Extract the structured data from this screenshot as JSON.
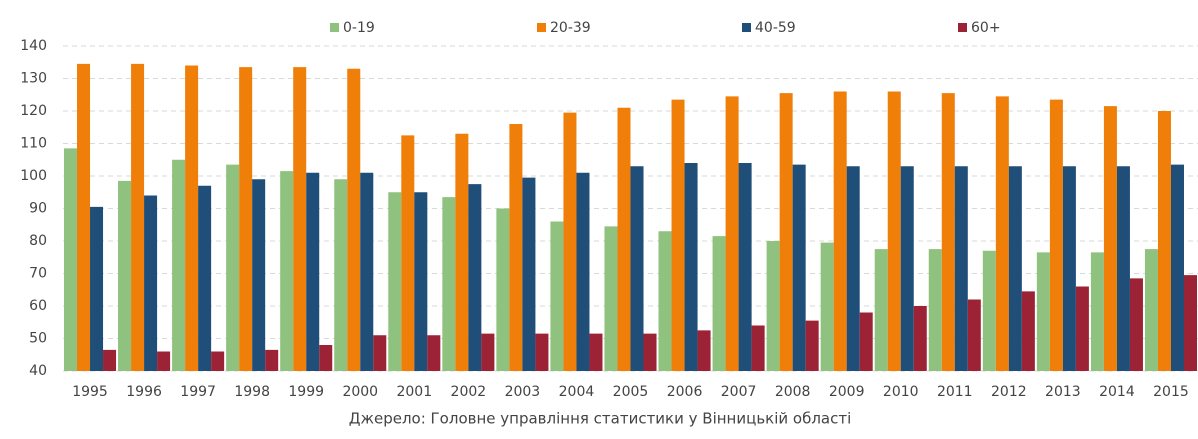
{
  "chart_data": {
    "type": "bar",
    "categories": [
      "1995",
      "1996",
      "1997",
      "1998",
      "1999",
      "2000",
      "2001",
      "2002",
      "2003",
      "2004",
      "2005",
      "2006",
      "2007",
      "2008",
      "2009",
      "2010",
      "2011",
      "2012",
      "2013",
      "2014",
      "2015"
    ],
    "series": [
      {
        "name": "0-19",
        "color": "#8fc17f",
        "values": [
          108.5,
          98.5,
          105,
          103.5,
          101.5,
          99,
          95,
          93.5,
          90,
          86,
          84.5,
          83,
          81.5,
          80,
          79.5,
          77.5,
          77.5,
          77,
          76.5,
          76.5,
          77.5
        ]
      },
      {
        "name": "20-39",
        "color": "#f07f09",
        "values": [
          134.5,
          134.5,
          134,
          133.5,
          133.5,
          133,
          112.5,
          113,
          116,
          119.5,
          121,
          123.5,
          124.5,
          125.5,
          126,
          126,
          125.5,
          124.5,
          123.5,
          121.5,
          120
        ]
      },
      {
        "name": "40-59",
        "color": "#1f4e79",
        "values": [
          90.5,
          94,
          97,
          99,
          101,
          101,
          95,
          97.5,
          99.5,
          101,
          103,
          104,
          104,
          103.5,
          103,
          103,
          103,
          103,
          103,
          103,
          103.5
        ]
      },
      {
        "name": "60+",
        "color": "#9b2335",
        "values": [
          46.5,
          46,
          46,
          46.5,
          48,
          51,
          51,
          51.5,
          51.5,
          51.5,
          51.5,
          52.5,
          54,
          55.5,
          58,
          60,
          62,
          64.5,
          66,
          68.5,
          69.5
        ]
      }
    ],
    "ylim": [
      40,
      140
    ],
    "yticks": [
      40,
      50,
      60,
      70,
      80,
      90,
      100,
      110,
      120,
      130,
      140
    ],
    "grid": true,
    "source": "Джерело:  Головне управління статистики у Вінницькій області"
  }
}
